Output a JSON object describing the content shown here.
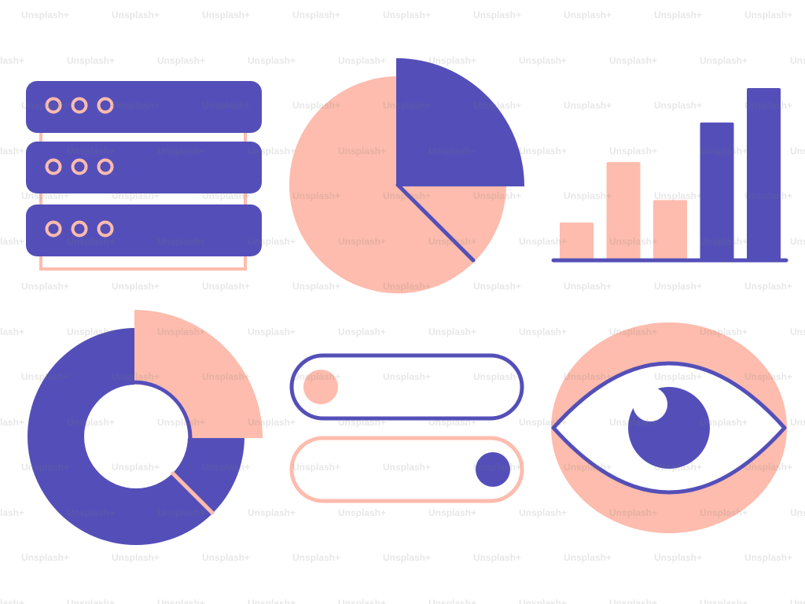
{
  "watermark": {
    "text": "Unsplash+"
  },
  "colors": {
    "primary": "#544fb8",
    "accent": "#fdbcad",
    "background": "#ffffff"
  },
  "illustrations": {
    "server_stack": {
      "icon": "server-stack-icon",
      "units": 3,
      "indicator_dots_per_unit": 3
    },
    "pie_chart": {
      "icon": "pie-chart-icon",
      "highlighted_slice_fraction": 0.25
    },
    "bar_chart": {
      "icon": "bar-chart-icon",
      "values": [
        0.22,
        0.57,
        0.35,
        0.8,
        1.0
      ],
      "colors": [
        "accent",
        "accent",
        "accent",
        "primary",
        "primary"
      ]
    },
    "donut_chart": {
      "icon": "donut-chart-icon",
      "highlighted_segment_fraction": 0.25
    },
    "toggles": [
      {
        "icon": "toggle-off-icon",
        "state": "off"
      },
      {
        "icon": "toggle-on-icon",
        "state": "on"
      }
    ],
    "eye": {
      "icon": "eye-icon"
    }
  }
}
